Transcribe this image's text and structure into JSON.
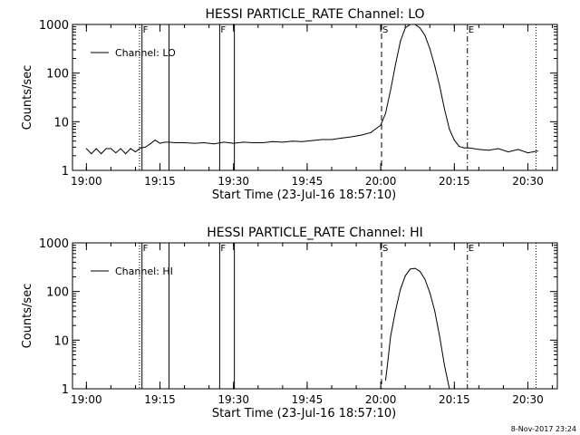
{
  "footer": {
    "date_stamp": "8-Nov-2017 23:24"
  },
  "chart_data": [
    {
      "type": "line",
      "title": "HESSI PARTICLE_RATE Channel: LO",
      "xlabel": "Start Time (23-Jul-16 18:57:10)",
      "ylabel": "Counts/sec",
      "y_scale": "log",
      "xlim": [
        "18:57:10",
        "20:36:00"
      ],
      "ylim": [
        1,
        1000
      ],
      "x_ticks": [
        "19:00",
        "19:15",
        "19:30",
        "19:45",
        "20:00",
        "20:15",
        "20:30"
      ],
      "y_ticks": [
        "1",
        "10",
        "100",
        "1000"
      ],
      "legend": {
        "position": "top-left",
        "entries": [
          "Channel: LO"
        ]
      },
      "markers": [
        {
          "time": "19:10:50",
          "style": "dotted",
          "label": ""
        },
        {
          "time": "19:11:20",
          "style": "solid",
          "label": "F"
        },
        {
          "time": "19:16:50",
          "style": "solid",
          "label": ""
        },
        {
          "time": "19:27:10",
          "style": "solid",
          "label": "F"
        },
        {
          "time": "19:30:10",
          "style": "solid",
          "label": ""
        },
        {
          "time": "20:00:10",
          "style": "dashed",
          "label": "S"
        },
        {
          "time": "20:17:40",
          "style": "dashdot",
          "label": "E"
        },
        {
          "time": "20:31:40",
          "style": "dotted",
          "label": ""
        }
      ],
      "series": [
        {
          "x": [
            "19:00:00",
            "19:01:00",
            "19:02:00",
            "19:03:00",
            "19:04:00",
            "19:05:00",
            "19:06:00",
            "19:07:00",
            "19:08:00",
            "19:09:00",
            "19:10:00",
            "19:11:00",
            "19:12:00",
            "19:13:00",
            "19:14:00",
            "19:15:00",
            "19:16:00",
            "19:17:00",
            "19:18:00",
            "19:20:00",
            "19:22:00",
            "19:24:00",
            "19:26:00",
            "19:28:00",
            "19:30:00",
            "19:32:00",
            "19:34:00",
            "19:36:00",
            "19:38:00",
            "19:40:00",
            "19:42:00",
            "19:44:00",
            "19:46:00",
            "19:48:00",
            "19:50:00",
            "19:52:00",
            "19:54:00",
            "19:56:00",
            "19:58:00",
            "20:00:00",
            "20:01:00",
            "20:02:00",
            "20:03:00",
            "20:04:00",
            "20:05:00",
            "20:06:00",
            "20:07:00",
            "20:08:00",
            "20:09:00",
            "20:10:00",
            "20:11:00",
            "20:12:00",
            "20:13:00",
            "20:14:00",
            "20:15:00",
            "20:16:00",
            "20:17:00",
            "20:18:00",
            "20:19:00",
            "20:20:00",
            "20:22:00",
            "20:24:00",
            "20:26:00",
            "20:28:00",
            "20:30:00",
            "20:32:00"
          ],
          "y": [
            2.8,
            2.2,
            2.8,
            2.2,
            2.8,
            2.8,
            2.3,
            2.8,
            2.2,
            2.8,
            2.4,
            2.9,
            3.0,
            3.5,
            4.2,
            3.6,
            3.8,
            3.8,
            3.7,
            3.7,
            3.6,
            3.7,
            3.5,
            3.8,
            3.6,
            3.8,
            3.7,
            3.7,
            3.9,
            3.8,
            4.0,
            3.9,
            4.1,
            4.3,
            4.3,
            4.6,
            4.9,
            5.3,
            6.0,
            8.5,
            15,
            45,
            150,
            450,
            850,
            1050,
            1000,
            850,
            600,
            320,
            140,
            55,
            18,
            7,
            4.2,
            3.1,
            2.9,
            2.9,
            2.8,
            2.7,
            2.6,
            2.8,
            2.4,
            2.7,
            2.3,
            2.5
          ]
        }
      ]
    },
    {
      "type": "line",
      "title": "HESSI PARTICLE_RATE Channel: HI",
      "xlabel": "Start Time (23-Jul-16 18:57:10)",
      "ylabel": "Counts/sec",
      "y_scale": "log",
      "xlim": [
        "18:57:10",
        "20:36:00"
      ],
      "ylim": [
        1,
        1000
      ],
      "x_ticks": [
        "19:00",
        "19:15",
        "19:30",
        "19:45",
        "20:00",
        "20:15",
        "20:30"
      ],
      "y_ticks": [
        "1",
        "10",
        "100",
        "1000"
      ],
      "legend": {
        "position": "top-left",
        "entries": [
          "Channel: HI"
        ]
      },
      "markers": [
        {
          "time": "19:10:50",
          "style": "dotted",
          "label": ""
        },
        {
          "time": "19:11:20",
          "style": "solid",
          "label": "F"
        },
        {
          "time": "19:16:50",
          "style": "solid",
          "label": ""
        },
        {
          "time": "19:27:10",
          "style": "solid",
          "label": "F"
        },
        {
          "time": "19:30:10",
          "style": "solid",
          "label": ""
        },
        {
          "time": "20:00:10",
          "style": "dashed",
          "label": "S"
        },
        {
          "time": "20:17:40",
          "style": "dashdot",
          "label": "E"
        },
        {
          "time": "20:31:40",
          "style": "dotted",
          "label": ""
        }
      ],
      "series": [
        {
          "x": [
            "20:01:00",
            "20:01:30",
            "20:02:00",
            "20:03:00",
            "20:04:00",
            "20:05:00",
            "20:06:00",
            "20:07:00",
            "20:08:00",
            "20:09:00",
            "20:10:00",
            "20:11:00",
            "20:12:00",
            "20:13:00",
            "20:14:00"
          ],
          "y": [
            1.5,
            4,
            12,
            40,
            110,
            210,
            290,
            300,
            260,
            180,
            95,
            40,
            12,
            3,
            1
          ]
        }
      ]
    }
  ]
}
